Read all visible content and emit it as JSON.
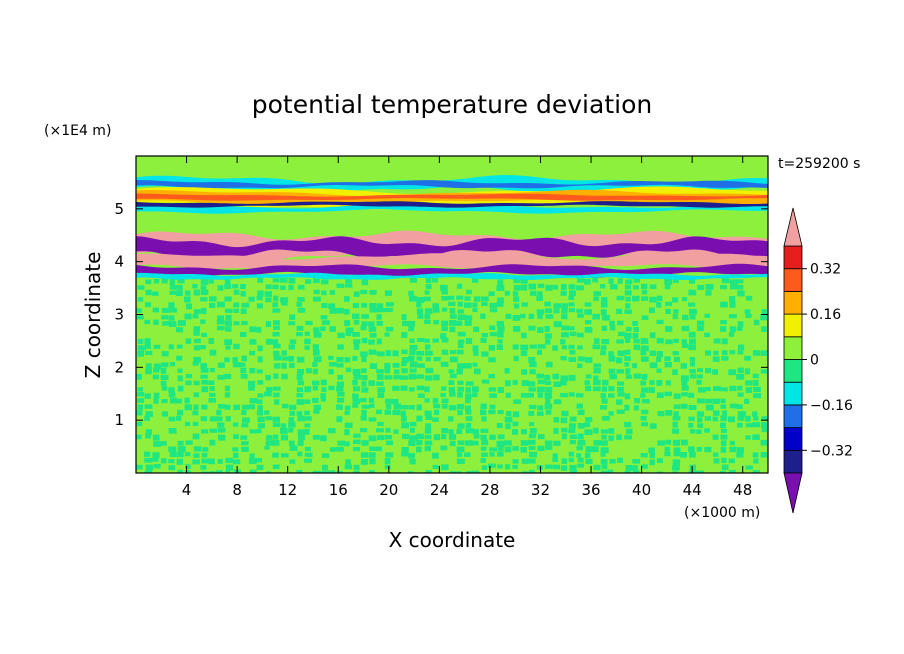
{
  "chart_data": {
    "type": "heatmap",
    "title": "potential temperature deviation",
    "xlabel": "X coordinate",
    "ylabel": "Z coordinate",
    "x_unit": "(×1000 m)",
    "y_unit": "(×1E4 m)",
    "time_label": "t=259200 s",
    "xlim": [
      0,
      50
    ],
    "ylim": [
      0,
      6
    ],
    "x_ticks": [
      4,
      8,
      12,
      16,
      20,
      24,
      28,
      32,
      36,
      40,
      44,
      48
    ],
    "y_ticks": [
      1,
      2,
      3,
      4,
      5
    ],
    "colorbar": {
      "levels": [
        -0.4,
        -0.32,
        -0.24,
        -0.16,
        -0.08,
        0,
        0.08,
        0.16,
        0.24,
        0.32,
        0.4
      ],
      "labels": [
        "0.32",
        "0.16",
        "0",
        "-0.16",
        "-0.32"
      ],
      "label_values": [
        0.32,
        0.16,
        0,
        -0.16,
        -0.32
      ],
      "colors": [
        "#7a0fb0",
        "#1e1e8c",
        "#0000c8",
        "#1f6fe6",
        "#00e6e6",
        "#1ee682",
        "#8cf03c",
        "#f0f000",
        "#ffaf00",
        "#ff5a1e",
        "#e61e1e",
        "#f0a0a0"
      ],
      "extend": "both"
    },
    "layers": [
      {
        "z_range": [
          0,
          3.7
        ],
        "pattern": "noise",
        "values": [
          0.08,
          -0.08
        ]
      },
      {
        "z_range": [
          3.7,
          4.1
        ],
        "pattern": "band",
        "values": [
          -0.4,
          0.4
        ]
      },
      {
        "z_range": [
          4.1,
          4.5
        ],
        "pattern": "band",
        "values": [
          0.4,
          -0.4
        ]
      },
      {
        "z_range": [
          4.9,
          5.3
        ],
        "pattern": "streak",
        "values": [
          0.32,
          -0.32,
          -0.16
        ]
      },
      {
        "z_range": [
          5.3,
          6.0
        ],
        "pattern": "smooth",
        "values": [
          0,
          -0.16
        ]
      }
    ]
  }
}
